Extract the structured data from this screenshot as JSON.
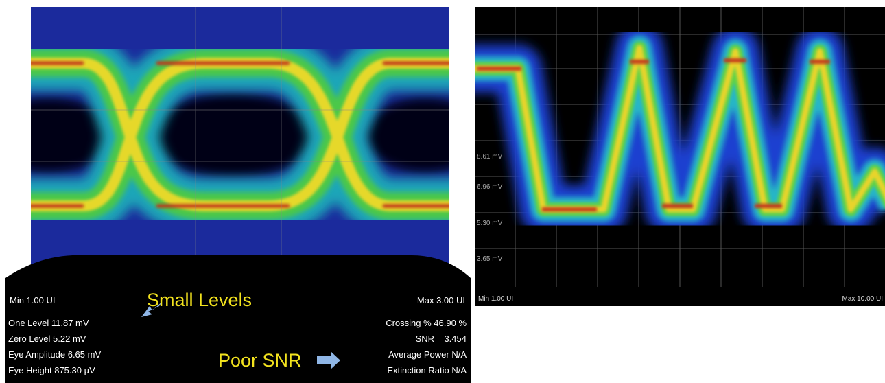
{
  "left_panel": {
    "min_label": "Min 1.00 UI",
    "max_label": "Max 3.00 UI",
    "callouts": {
      "small_levels": "Small Levels",
      "poor_snr": "Poor SNR"
    },
    "measurements_left": [
      "One Level 11.87 mV",
      "Zero Level 5.22 mV",
      "Eye Amplitude 6.65 mV",
      "Eye Height 875.30 µV"
    ],
    "measurements_right": [
      "Crossing % 46.90 %",
      "SNR    3.454",
      "Average Power N/A",
      "Extinction Ratio N/A"
    ]
  },
  "right_panel": {
    "axis_labels": [
      "8.61 mV",
      "6.96 mV",
      "5.30 mV",
      "3.65 mV"
    ],
    "min_label": "Min 1.00 UI",
    "max_label": "Max 10.00 UI"
  }
}
